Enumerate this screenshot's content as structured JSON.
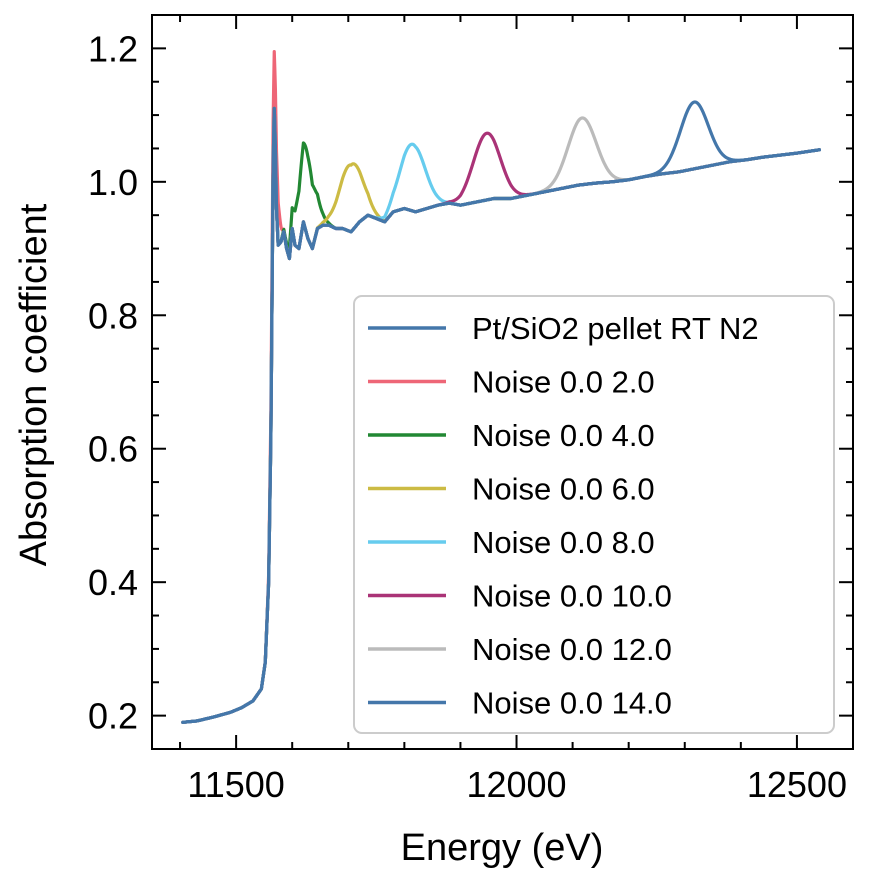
{
  "chart_data": {
    "type": "line",
    "title": "",
    "xlabel": "Energy (eV)",
    "ylabel": "Absorption coefficient",
    "xlim": [
      11350,
      12600
    ],
    "ylim": [
      0.15,
      1.25
    ],
    "xticks": [
      11500,
      12000,
      12500
    ],
    "xtick_labels": [
      "11500",
      "12000",
      "12500"
    ],
    "yticks": [
      0.2,
      0.4,
      0.6,
      0.8,
      1.0,
      1.2
    ],
    "ytick_labels": [
      "0.2",
      "0.4",
      "0.6",
      "0.8",
      "1.0",
      "1.2"
    ],
    "grid": false,
    "legend_position": "lower-right",
    "base_spectrum": {
      "x": [
        11405,
        11430,
        11460,
        11490,
        11510,
        11530,
        11545,
        11552,
        11558,
        11562,
        11564,
        11566,
        11568,
        11570,
        11572,
        11575,
        11580,
        11585,
        11590,
        11595,
        11600,
        11605,
        11612,
        11620,
        11628,
        11636,
        11645,
        11655,
        11665,
        11678,
        11690,
        11705,
        11720,
        11735,
        11750,
        11765,
        11780,
        11800,
        11820,
        11840,
        11860,
        11880,
        11900,
        11930,
        11960,
        11990,
        12020,
        12050,
        12080,
        12110,
        12140,
        12170,
        12200,
        12230,
        12260,
        12290,
        12320,
        12350,
        12380,
        12410,
        12440,
        12470,
        12500,
        12540
      ],
      "y": [
        0.19,
        0.192,
        0.198,
        0.205,
        0.212,
        0.222,
        0.24,
        0.28,
        0.4,
        0.62,
        0.82,
        1.02,
        1.11,
        1.05,
        0.96,
        0.905,
        0.91,
        0.925,
        0.9,
        0.885,
        0.93,
        0.905,
        0.9,
        0.94,
        0.915,
        0.9,
        0.93,
        0.935,
        0.935,
        0.93,
        0.93,
        0.925,
        0.94,
        0.95,
        0.945,
        0.94,
        0.955,
        0.96,
        0.955,
        0.96,
        0.965,
        0.968,
        0.965,
        0.97,
        0.975,
        0.975,
        0.98,
        0.985,
        0.99,
        0.995,
        0.998,
        1.0,
        1.003,
        1.008,
        1.012,
        1.015,
        1.02,
        1.025,
        1.03,
        1.033,
        1.037,
        1.04,
        1.043,
        1.048
      ]
    },
    "series": [
      {
        "name": "Pt/SiO2 pellet RT N2",
        "color": "#4477aa",
        "peak_center": null,
        "peak_height": 0,
        "peak_width": 0
      },
      {
        "name": "Noise 0.0 2.0",
        "color": "#ee6677",
        "peak_center": 11570,
        "peak_height": 0.09,
        "peak_width": 6
      },
      {
        "name": "Noise 0.0 4.0",
        "color": "#228833",
        "peak_center": 11625,
        "peak_height": 0.125,
        "peak_width": 15
      },
      {
        "name": "Noise 0.0 6.0",
        "color": "#ccbb44",
        "peak_center": 11705,
        "peak_height": 0.1,
        "peak_width": 20
      },
      {
        "name": "Noise 0.0 8.0",
        "color": "#66ccee",
        "peak_center": 11815,
        "peak_height": 0.1,
        "peak_width": 22
      },
      {
        "name": "Noise 0.0 10.0",
        "color": "#aa3377",
        "peak_center": 11947,
        "peak_height": 0.1,
        "peak_width": 24
      },
      {
        "name": "Noise 0.0 12.0",
        "color": "#bbbbbb",
        "peak_center": 12117,
        "peak_height": 0.1,
        "peak_width": 25
      },
      {
        "name": "Noise 0.0 14.0",
        "color": "#4477aa",
        "peak_center": 12317,
        "peak_height": 0.1,
        "peak_width": 25
      }
    ]
  }
}
